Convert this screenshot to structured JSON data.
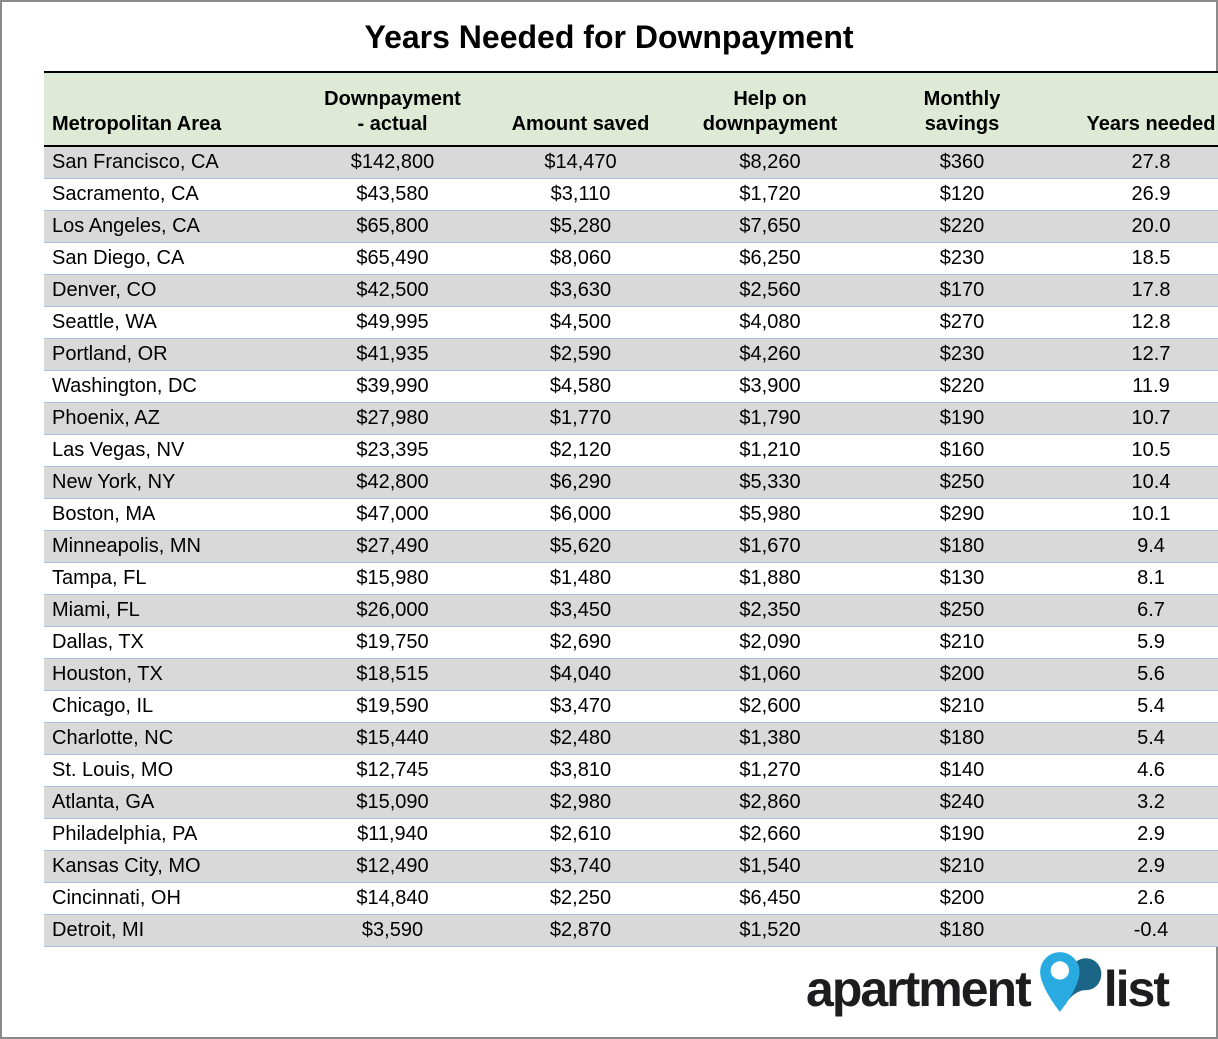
{
  "page": {
    "title": "Years Needed for Downpayment"
  },
  "logo": {
    "word_left": "apartment",
    "word_right": "list",
    "pin_light_color": "#29ABE2",
    "pin_dark_color": "#1B6687",
    "text_color": "#1D1D1F"
  },
  "colors": {
    "header_bg": "#DEE9D6",
    "stripe_bg": "#D9D9D9",
    "row_divider": "#A8C4E0",
    "table_rule": "#000000",
    "page_border": "#8A8A8A"
  },
  "chart_data": {
    "type": "table",
    "title": "Years Needed for Downpayment",
    "columns": [
      "Metropolitan Area",
      "Downpayment\n- actual",
      "Amount saved",
      "Help on\ndownpayment",
      "Monthly\nsavings",
      "Years needed"
    ],
    "rows": [
      [
        "San Francisco, CA",
        "$142,800",
        "$14,470",
        "$8,260",
        "$360",
        "27.8"
      ],
      [
        "Sacramento, CA",
        "$43,580",
        "$3,110",
        "$1,720",
        "$120",
        "26.9"
      ],
      [
        "Los Angeles, CA",
        "$65,800",
        "$5,280",
        "$7,650",
        "$220",
        "20.0"
      ],
      [
        "San Diego, CA",
        "$65,490",
        "$8,060",
        "$6,250",
        "$230",
        "18.5"
      ],
      [
        "Denver, CO",
        "$42,500",
        "$3,630",
        "$2,560",
        "$170",
        "17.8"
      ],
      [
        "Seattle, WA",
        "$49,995",
        "$4,500",
        "$4,080",
        "$270",
        "12.8"
      ],
      [
        "Portland, OR",
        "$41,935",
        "$2,590",
        "$4,260",
        "$230",
        "12.7"
      ],
      [
        "Washington, DC",
        "$39,990",
        "$4,580",
        "$3,900",
        "$220",
        "11.9"
      ],
      [
        "Phoenix, AZ",
        "$27,980",
        "$1,770",
        "$1,790",
        "$190",
        "10.7"
      ],
      [
        "Las Vegas, NV",
        "$23,395",
        "$2,120",
        "$1,210",
        "$160",
        "10.5"
      ],
      [
        "New York, NY",
        "$42,800",
        "$6,290",
        "$5,330",
        "$250",
        "10.4"
      ],
      [
        "Boston, MA",
        "$47,000",
        "$6,000",
        "$5,980",
        "$290",
        "10.1"
      ],
      [
        "Minneapolis, MN",
        "$27,490",
        "$5,620",
        "$1,670",
        "$180",
        "9.4"
      ],
      [
        "Tampa, FL",
        "$15,980",
        "$1,480",
        "$1,880",
        "$130",
        "8.1"
      ],
      [
        "Miami, FL",
        "$26,000",
        "$3,450",
        "$2,350",
        "$250",
        "6.7"
      ],
      [
        "Dallas, TX",
        "$19,750",
        "$2,690",
        "$2,090",
        "$210",
        "5.9"
      ],
      [
        "Houston, TX",
        "$18,515",
        "$4,040",
        "$1,060",
        "$200",
        "5.6"
      ],
      [
        "Chicago, IL",
        "$19,590",
        "$3,470",
        "$2,600",
        "$210",
        "5.4"
      ],
      [
        "Charlotte, NC",
        "$15,440",
        "$2,480",
        "$1,380",
        "$180",
        "5.4"
      ],
      [
        "St. Louis, MO",
        "$12,745",
        "$3,810",
        "$1,270",
        "$140",
        "4.6"
      ],
      [
        "Atlanta, GA",
        "$15,090",
        "$2,980",
        "$2,860",
        "$240",
        "3.2"
      ],
      [
        "Philadelphia, PA",
        "$11,940",
        "$2,610",
        "$2,660",
        "$190",
        "2.9"
      ],
      [
        "Kansas City, MO",
        "$12,490",
        "$3,740",
        "$1,540",
        "$210",
        "2.9"
      ],
      [
        "Cincinnati, OH",
        "$14,840",
        "$2,250",
        "$6,450",
        "$200",
        "2.6"
      ],
      [
        "Detroit, MI",
        "$3,590",
        "$2,870",
        "$1,520",
        "$180",
        "-0.4"
      ]
    ],
    "layout": {
      "striped_rows": "odd data rows gray, even white",
      "header_align": "center bottom, first column left",
      "data_align": "center, first column left",
      "grid": "horizontal light-blue row dividers, black rules above and below header"
    }
  }
}
